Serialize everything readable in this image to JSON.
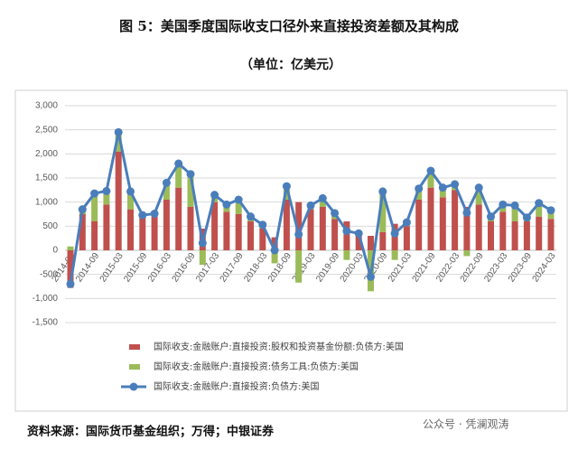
{
  "chart_data": {
    "type": "bar",
    "title": "图 5：美国季度国际收支口径外来直接投资差额及其构成",
    "subtitle": "（单位：亿美元）",
    "source": "资料来源：国际货币基金组织；万得；中银证券",
    "watermark": "公众号 · 凭澜观涛",
    "stacked": true,
    "categories": [
      "2014-03",
      null,
      "2014-09",
      null,
      "2015-03",
      null,
      "2015-09",
      null,
      "2016-03",
      null,
      "2016-09",
      null,
      "2017-03",
      null,
      "2017-09",
      null,
      "2018-03",
      null,
      "2018-09",
      null,
      "2019-03",
      null,
      "2019-09",
      null,
      "2020-03",
      null,
      "2020-09",
      null,
      "2021-03",
      null,
      "2021-09",
      null,
      "2022-03",
      null,
      "2022-09",
      null,
      "2023-03",
      null,
      "2023-09",
      null,
      "2024-03"
    ],
    "series": [
      {
        "name": "国际收支:金融账户:直接投资:股权和投资基金份额:负债方:美国",
        "type": "bar",
        "color": "#c0504d",
        "values": [
          -780,
          750,
          600,
          950,
          2050,
          850,
          700,
          700,
          1050,
          1300,
          900,
          450,
          1000,
          800,
          750,
          600,
          450,
          270,
          1050,
          1000,
          850,
          900,
          650,
          600,
          350,
          300,
          380,
          550,
          500,
          1050,
          1300,
          1100,
          1250,
          900,
          950,
          600,
          800,
          600,
          600,
          700,
          650
        ]
      },
      {
        "name": "国际收支:金融账户:直接投资:债务工具:负债方:美国",
        "type": "bar",
        "color": "#9bbb59",
        "values": [
          80,
          100,
          580,
          280,
          400,
          370,
          30,
          60,
          350,
          500,
          680,
          -300,
          150,
          150,
          300,
          100,
          80,
          -270,
          280,
          -670,
          80,
          180,
          120,
          -200,
          0,
          -850,
          840,
          -200,
          80,
          230,
          350,
          200,
          120,
          -120,
          350,
          100,
          150,
          330,
          80,
          280,
          180
        ]
      },
      {
        "name": "国际收支:金融账户:直接投资:负债方:美国",
        "type": "line",
        "color": "#4a7ebb",
        "values": [
          -700,
          850,
          1180,
          1230,
          2450,
          1220,
          730,
          760,
          1400,
          1800,
          1580,
          150,
          1150,
          950,
          1050,
          700,
          530,
          0,
          1330,
          330,
          930,
          1080,
          770,
          400,
          350,
          -550,
          1220,
          350,
          580,
          1280,
          1650,
          1300,
          1370,
          780,
          1300,
          700,
          950,
          930,
          680,
          980,
          830
        ]
      }
    ],
    "ylim": [
      -1500,
      3000
    ],
    "yticks": [
      {
        "value": -1500,
        "label": "-1,500"
      },
      {
        "value": -1000,
        "label": "-1,000"
      },
      -500,
      0,
      500,
      {
        "value": 1000,
        "label": "1,000"
      },
      {
        "value": 1500,
        "label": "1,500"
      },
      {
        "value": 2000,
        "label": "2,000"
      },
      {
        "value": 2500,
        "label": "2,500"
      },
      {
        "value": 3000,
        "label": "3,000"
      }
    ],
    "grid": true
  }
}
